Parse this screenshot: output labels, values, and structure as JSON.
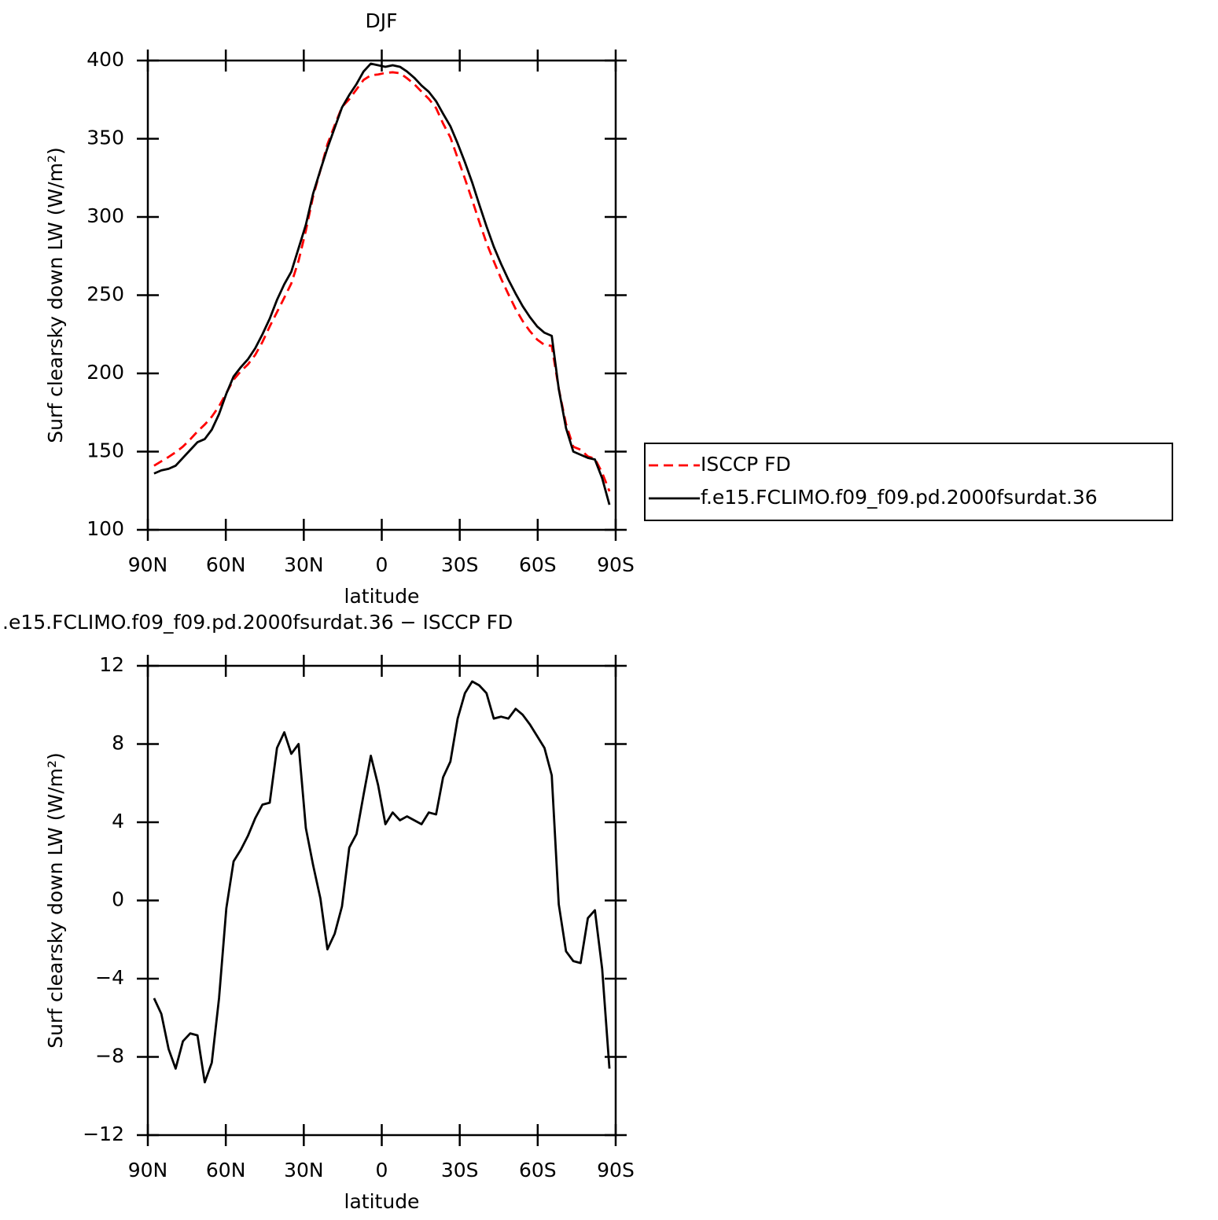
{
  "chart_data": [
    {
      "type": "line",
      "title": "DJF",
      "xlabel": "latitude",
      "ylabel": "Surf clearsky down LW (W/m²)",
      "xlim": [
        90,
        -90
      ],
      "ylim": [
        100,
        400
      ],
      "xticks": [
        {
          "value": 90,
          "label": "90N"
        },
        {
          "value": 60,
          "label": "60N"
        },
        {
          "value": 30,
          "label": "30N"
        },
        0,
        {
          "value": -30,
          "label": "30S"
        },
        {
          "value": -60,
          "label": "60S"
        },
        {
          "value": -90,
          "label": "90S"
        }
      ],
      "yticks": [
        100,
        150,
        200,
        250,
        300,
        350,
        400
      ],
      "legend": "right",
      "x": [
        87.6,
        84.8,
        82.0,
        79.3,
        76.5,
        73.7,
        70.9,
        68.1,
        65.4,
        62.6,
        59.8,
        57.0,
        54.2,
        51.5,
        48.7,
        45.9,
        43.1,
        40.3,
        37.5,
        34.8,
        32.0,
        29.2,
        26.4,
        23.6,
        20.9,
        18.1,
        15.3,
        12.5,
        9.7,
        7.0,
        4.2,
        1.4,
        -1.4,
        -4.2,
        -7.0,
        -9.7,
        -12.5,
        -15.3,
        -18.1,
        -20.9,
        -23.6,
        -26.4,
        -29.2,
        -32.0,
        -34.8,
        -37.5,
        -40.3,
        -43.1,
        -45.9,
        -48.7,
        -51.5,
        -54.2,
        -57.0,
        -59.8,
        -62.6,
        -65.4,
        -68.1,
        -70.9,
        -73.7,
        -76.5,
        -79.3,
        -82.0,
        -84.8,
        -87.6
      ],
      "series": [
        {
          "name": "ISCCP FD",
          "color": "#ff0000",
          "style": "dashed",
          "values": [
            141,
            143.8,
            146.6,
            149.6,
            153.2,
            157.8,
            162.9,
            167.3,
            172.3,
            179,
            187.4,
            196,
            201.4,
            205.7,
            211.8,
            220.1,
            230,
            239.2,
            248.4,
            257.5,
            272,
            291.3,
            313.2,
            329.9,
            346.5,
            358.7,
            370.3,
            375.3,
            381.6,
            387.6,
            390.6,
            391.1,
            392.1,
            392.5,
            391.9,
            388.7,
            384.9,
            380.1,
            375.5,
            369.6,
            359.7,
            350.9,
            337.7,
            324.4,
            310.8,
            297,
            283.4,
            271.7,
            260.6,
            250.7,
            241.2,
            233.5,
            227,
            221.6,
            218.2,
            217.6,
            190.2,
            167.6,
            153.1,
            151.2,
            146.9,
            145.5,
            136.5,
            124.6
          ]
        },
        {
          "name": "f.e15.FCLIMO.f09_f09.pd.2000fsurdat.36",
          "color": "#000000",
          "style": "solid",
          "values": [
            136,
            138,
            139,
            141,
            146,
            151,
            156,
            158,
            164,
            174,
            187,
            198,
            204,
            209,
            216,
            225,
            235,
            247,
            257,
            265,
            280,
            295,
            315,
            330,
            344,
            357,
            370,
            378,
            385,
            393,
            398,
            397,
            396,
            397,
            396,
            393,
            389,
            384,
            380,
            374,
            366,
            358,
            347,
            335,
            322,
            308,
            294,
            281,
            270,
            260,
            251,
            243,
            236,
            230,
            226,
            224,
            190,
            165,
            150,
            148,
            146,
            145,
            133,
            116
          ]
        }
      ]
    },
    {
      "type": "line",
      "title": ".e15.FCLIMO.f09_f09.pd.2000fsurdat.36 − ISCCP FD",
      "xlabel": "latitude",
      "ylabel": "Surf clearsky down LW (W/m²)",
      "xlim": [
        90,
        -90
      ],
      "ylim": [
        -12,
        12
      ],
      "xticks": [
        {
          "value": 90,
          "label": "90N"
        },
        {
          "value": 60,
          "label": "60N"
        },
        {
          "value": 30,
          "label": "30N"
        },
        0,
        {
          "value": -30,
          "label": "30S"
        },
        {
          "value": -60,
          "label": "60S"
        },
        {
          "value": -90,
          "label": "90S"
        }
      ],
      "yticks": [
        {
          "value": -12,
          "label": "−12"
        },
        {
          "value": -8,
          "label": "−8"
        },
        {
          "value": -4,
          "label": "−4"
        },
        0,
        4,
        8,
        12
      ],
      "x": [
        87.6,
        84.8,
        82.0,
        79.3,
        76.5,
        73.7,
        70.9,
        68.1,
        65.4,
        62.6,
        59.8,
        57.0,
        54.2,
        51.5,
        48.7,
        45.9,
        43.1,
        40.3,
        37.5,
        34.8,
        32.0,
        29.2,
        26.4,
        23.6,
        20.9,
        18.1,
        15.3,
        12.5,
        9.7,
        7.0,
        4.2,
        1.4,
        -1.4,
        -4.2,
        -7.0,
        -9.7,
        -12.5,
        -15.3,
        -18.1,
        -20.9,
        -23.6,
        -26.4,
        -29.2,
        -32.0,
        -34.8,
        -37.5,
        -40.3,
        -43.1,
        -45.9,
        -48.7,
        -51.5,
        -54.2,
        -57.0,
        -59.8,
        -62.6,
        -65.4,
        -68.1,
        -70.9,
        -73.7,
        -76.5,
        -79.3,
        -82.0,
        -84.8,
        -87.6
      ],
      "series": [
        {
          "color": "#000000",
          "style": "solid",
          "values": [
            -5,
            -5.8,
            -7.6,
            -8.6,
            -7.2,
            -6.8,
            -6.9,
            -9.3,
            -8.3,
            -5,
            -0.4,
            2,
            2.6,
            3.3,
            4.2,
            4.9,
            5,
            7.8,
            8.6,
            7.5,
            8,
            3.7,
            1.8,
            0.1,
            -2.5,
            -1.7,
            -0.3,
            2.7,
            3.4,
            5.4,
            7.4,
            5.9,
            3.9,
            4.5,
            4.1,
            4.3,
            4.1,
            3.9,
            4.5,
            4.4,
            6.3,
            7.1,
            9.3,
            10.6,
            11.2,
            11,
            10.6,
            9.3,
            9.4,
            9.3,
            9.8,
            9.5,
            9,
            8.4,
            7.8,
            6.4,
            -0.2,
            -2.6,
            -3.1,
            -3.2,
            -0.9,
            -0.5,
            -3.5,
            -8.6
          ]
        }
      ]
    }
  ]
}
